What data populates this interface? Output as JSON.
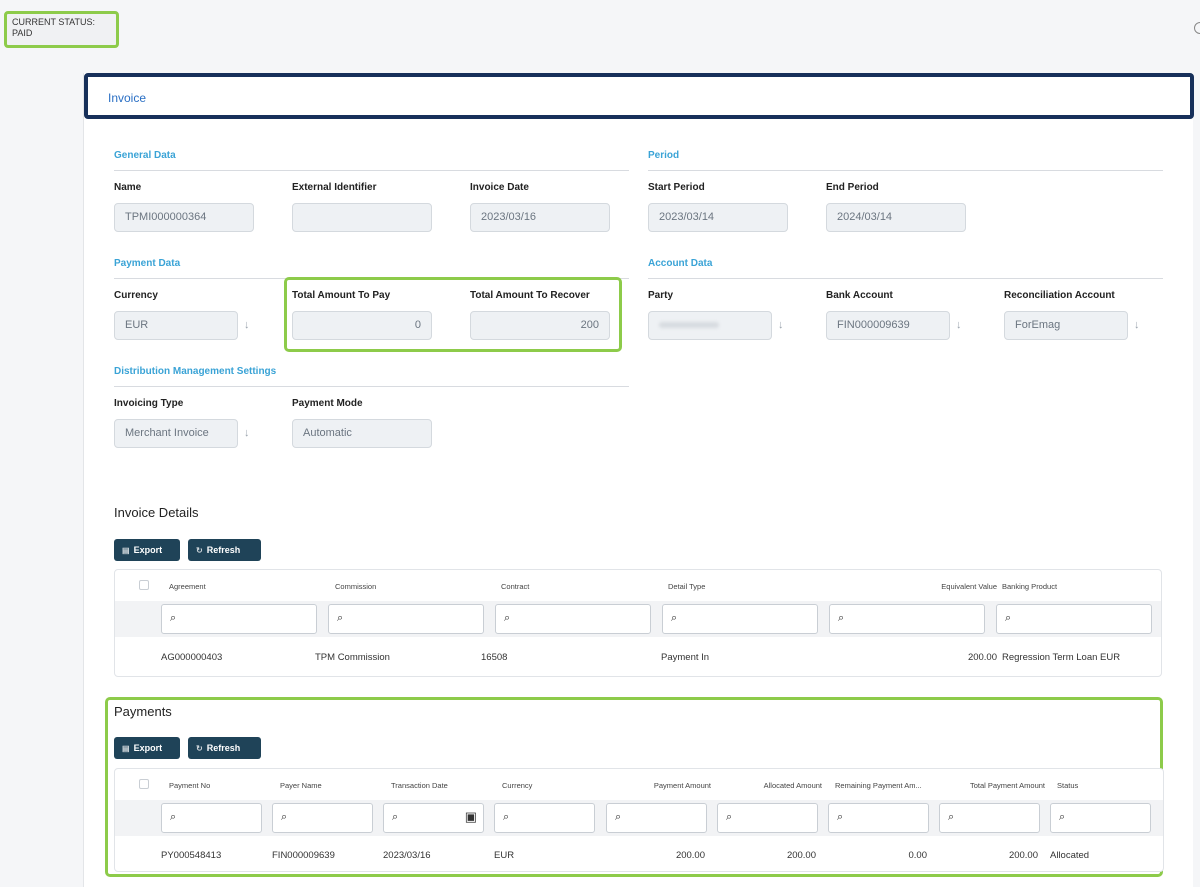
{
  "status": {
    "label": "CURRENT STATUS:",
    "value": "PAID"
  },
  "header": {
    "title": "Invoice"
  },
  "sections": {
    "general": "General Data",
    "period": "Period",
    "payment": "Payment Data",
    "account": "Account Data",
    "distribution": "Distribution Management Settings"
  },
  "fields": {
    "name": {
      "label": "Name",
      "value": "TPMI000000364"
    },
    "external_id": {
      "label": "External Identifier",
      "value": ""
    },
    "invoice_date": {
      "label": "Invoice Date",
      "value": "2023/03/16"
    },
    "start_period": {
      "label": "Start Period",
      "value": "2023/03/14"
    },
    "end_period": {
      "label": "End Period",
      "value": "2024/03/14"
    },
    "currency": {
      "label": "Currency",
      "value": "EUR"
    },
    "total_to_pay": {
      "label": "Total Amount To Pay",
      "value": "0"
    },
    "total_to_recover": {
      "label": "Total Amount To Recover",
      "value": "200"
    },
    "party": {
      "label": "Party",
      "value": ""
    },
    "bank_account": {
      "label": "Bank Account",
      "value": "FIN000009639"
    },
    "reconciliation_account": {
      "label": "Reconciliation Account",
      "value": "ForEmag"
    },
    "invoicing_type": {
      "label": "Invoicing Type",
      "value": "Merchant Invoice"
    },
    "payment_mode": {
      "label": "Payment Mode",
      "value": "Automatic"
    }
  },
  "invoice_details": {
    "title": "Invoice Details",
    "export_label": "Export",
    "refresh_label": "Refresh",
    "columns": [
      "Agreement",
      "Commission",
      "Contract",
      "Detail Type",
      "Equivalent Value",
      "Banking Product"
    ],
    "rows": [
      [
        "AG000000403",
        "TPM Commission",
        "16508",
        "Payment In",
        "200.00",
        "Regression Term Loan EUR"
      ]
    ]
  },
  "payments": {
    "title": "Payments",
    "export_label": "Export",
    "refresh_label": "Refresh",
    "columns": [
      "Payment No",
      "Payer Name",
      "Transaction Date",
      "Currency",
      "Payment Amount",
      "Allocated Amount",
      "Remaining Payment Am...",
      "Total Payment Amount",
      "Status"
    ],
    "rows": [
      [
        "PY000548413",
        "FIN000009639",
        "2023/03/16",
        "EUR",
        "200.00",
        "200.00",
        "0.00",
        "200.00",
        "Allocated"
      ]
    ]
  },
  "icons": {
    "export": "file-icon",
    "refresh": "refresh-icon",
    "search": "search-icon",
    "calendar": "calendar-icon",
    "dropdown": "arrow-down-icon"
  },
  "colors": {
    "accent": "#3aa3d6",
    "highlight": "#8dcb4a",
    "header_border": "#17305a",
    "button": "#1f4358"
  }
}
